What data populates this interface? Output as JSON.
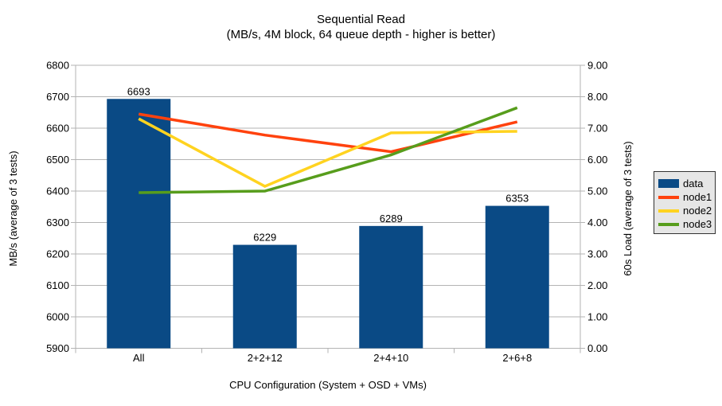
{
  "title": "Sequential Read",
  "subtitle": "(MB/s, 4M block, 64 queue depth - higher is better)",
  "chart_data": {
    "type": "bar",
    "subtype": "combo bar + line, dual y-axis",
    "categories": [
      "All",
      "2+2+12",
      "2+4+10",
      "2+6+8"
    ],
    "bar_series": {
      "name": "data",
      "axis": "left",
      "color": "#0a4a85",
      "values": [
        6693,
        6229,
        6289,
        6353
      ],
      "data_labels": [
        "6693",
        "6229",
        "6289",
        "6353"
      ]
    },
    "line_series": [
      {
        "name": "node1",
        "axis": "right",
        "color": "#ff420e",
        "values": [
          7.45,
          6.78,
          6.25,
          7.2
        ]
      },
      {
        "name": "node2",
        "axis": "right",
        "color": "#ffd320",
        "values": [
          7.3,
          5.15,
          6.85,
          6.9
        ]
      },
      {
        "name": "node3",
        "axis": "right",
        "color": "#579d1c",
        "values": [
          4.95,
          5.0,
          6.15,
          7.65
        ]
      }
    ],
    "left_axis": {
      "label": "MB/s (average of 3 tests)",
      "min": 5900,
      "max": 6800,
      "step": 100,
      "ticks": [
        "6800",
        "6700",
        "6600",
        "6500",
        "6400",
        "6300",
        "6200",
        "6100",
        "6000",
        "5900"
      ]
    },
    "right_axis": {
      "label": "60s Load (average of 3 tests)",
      "min": 0,
      "max": 9,
      "step": 1,
      "ticks": [
        "9.00",
        "8.00",
        "7.00",
        "6.00",
        "5.00",
        "4.00",
        "3.00",
        "2.00",
        "1.00",
        "0.00"
      ]
    },
    "x_axis": {
      "label": "CPU Configuration (System + OSD + VMs)"
    },
    "legend": {
      "position": "right",
      "background": "#e6e6e6",
      "entries": [
        {
          "label": "data",
          "color": "#0a4a85",
          "type": "box"
        },
        {
          "label": "node1",
          "color": "#ff420e",
          "type": "line"
        },
        {
          "label": "node2",
          "color": "#ffd320",
          "type": "line"
        },
        {
          "label": "node3",
          "color": "#579d1c",
          "type": "line"
        }
      ]
    },
    "grid": "horizontal gridlines on",
    "grid_color": "#b3b3b3",
    "background": "#ffffff"
  }
}
